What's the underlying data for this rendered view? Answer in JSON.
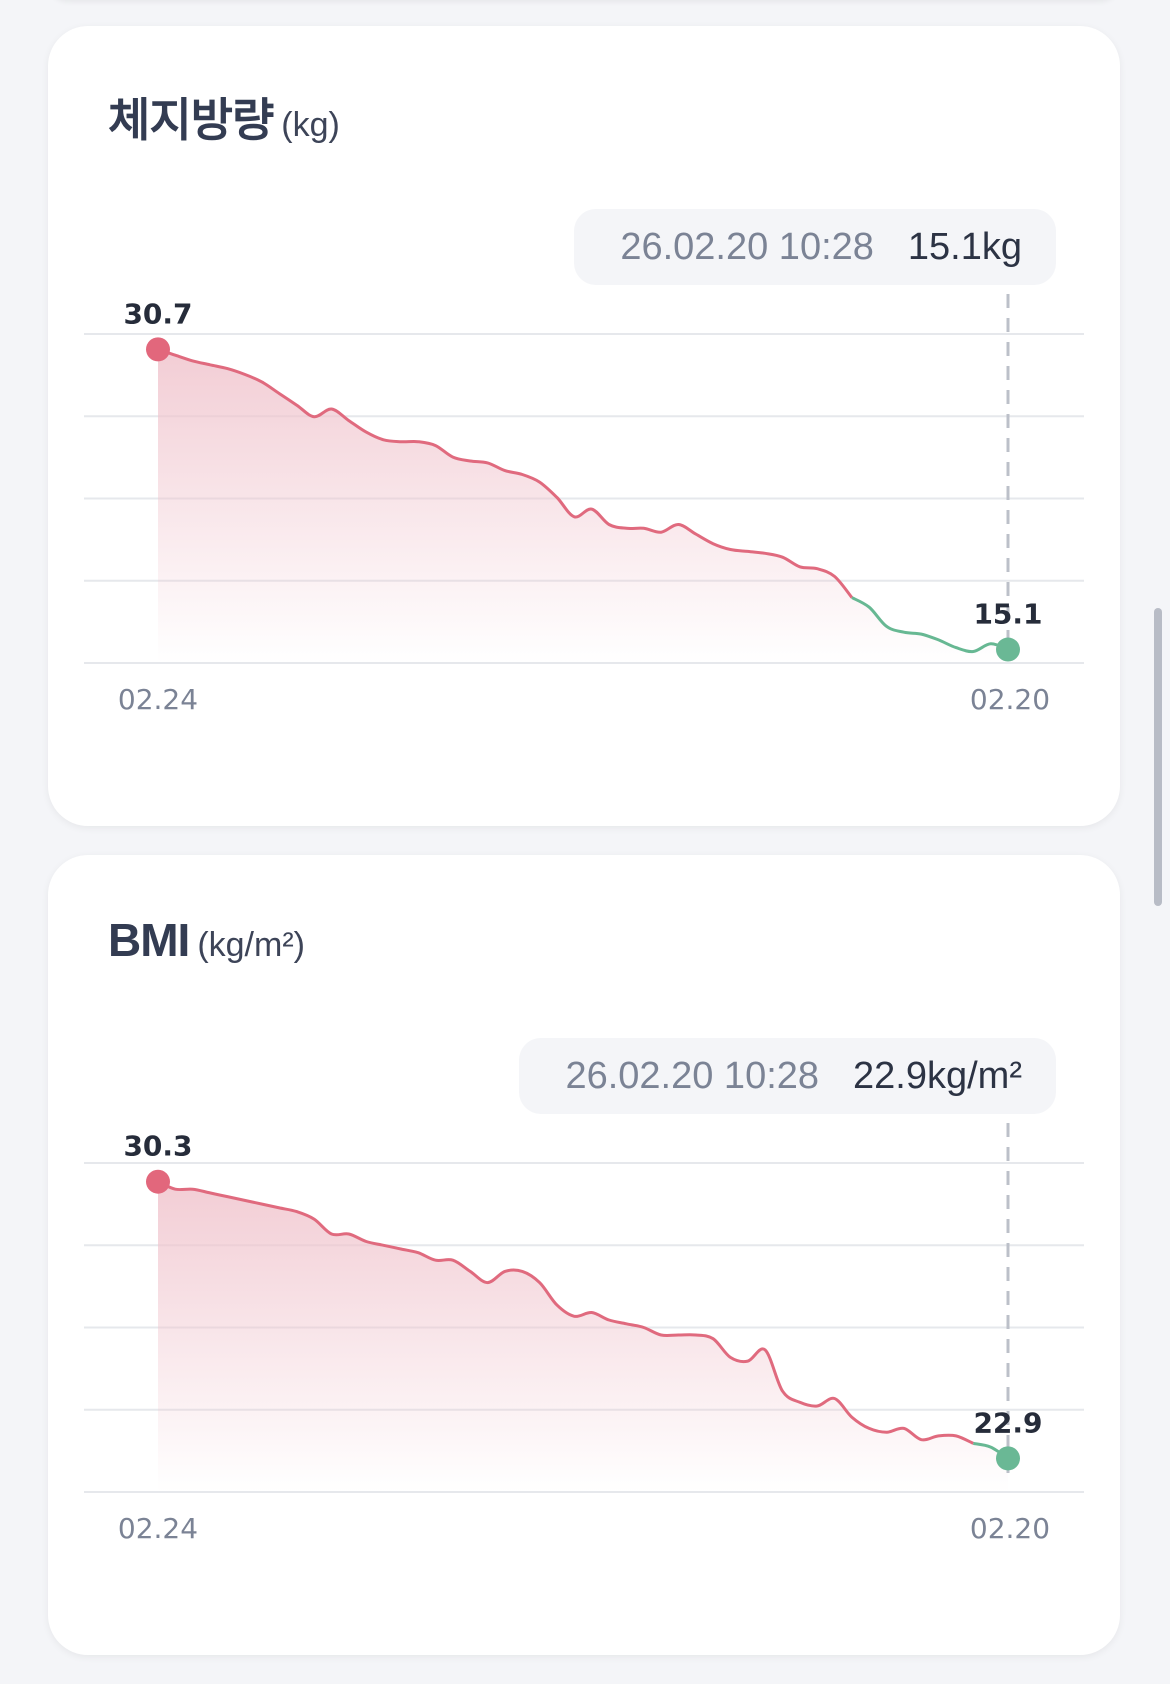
{
  "cards": [
    {
      "title": "체지방량",
      "unit": "(kg)",
      "chip": {
        "date": "26.02.20 10:28",
        "value": "15.1kg"
      },
      "colors": {
        "line": "#e06a7e",
        "fill": "#f0c4cd",
        "first_dot": "#e2677c",
        "last_dot": "#6ab895",
        "last_line": "#67b893"
      },
      "chart_data": {
        "type": "area",
        "x_tick_labels": [
          "02.24",
          "02.20"
        ],
        "first_label": "30.7",
        "last_label": "15.1",
        "values": [
          30.7,
          30.4,
          30.1,
          29.9,
          29.7,
          29.4,
          29.0,
          28.4,
          27.8,
          27.2,
          27.6,
          27.0,
          26.4,
          26.0,
          25.9,
          25.9,
          25.7,
          25.1,
          24.9,
          24.8,
          24.4,
          24.2,
          23.8,
          23.0,
          22.0,
          22.4,
          21.6,
          21.4,
          21.4,
          21.2,
          21.6,
          21.1,
          20.6,
          20.3,
          20.2,
          20.1,
          19.9,
          19.4,
          19.3,
          18.9,
          17.8,
          17.3,
          16.3,
          16.0,
          15.9,
          15.6,
          15.2,
          15.0,
          15.4,
          15.1
        ],
        "green_from_index": 40,
        "ylim": [
          14.4,
          31.5
        ],
        "gridlines": 5,
        "grid": true
      }
    },
    {
      "title": "BMI",
      "unit": "(kg/m²)",
      "chip": {
        "date": "26.02.20 10:28",
        "value": "22.9kg/m²"
      },
      "colors": {
        "line": "#e06a7e",
        "fill": "#f0c4cd",
        "first_dot": "#e2677c",
        "last_dot": "#6ab895",
        "last_line": "#67b893"
      },
      "chart_data": {
        "type": "area",
        "x_tick_labels": [
          "02.24",
          "02.20"
        ],
        "first_label": "30.3",
        "last_label": "22.9",
        "values": [
          30.3,
          30.1,
          30.1,
          30.0,
          29.9,
          29.8,
          29.7,
          29.6,
          29.5,
          29.3,
          28.9,
          28.9,
          28.7,
          28.6,
          28.5,
          28.4,
          28.2,
          28.2,
          27.9,
          27.6,
          27.9,
          27.9,
          27.6,
          27.0,
          26.7,
          26.8,
          26.6,
          26.5,
          26.4,
          26.2,
          26.2,
          26.2,
          26.1,
          25.6,
          25.5,
          25.8,
          24.7,
          24.4,
          24.3,
          24.5,
          24.0,
          23.7,
          23.6,
          23.7,
          23.4,
          23.5,
          23.5,
          23.3,
          23.2,
          22.9
        ],
        "green_from_index": 47,
        "ylim": [
          22.0,
          30.8
        ],
        "gridlines": 5,
        "grid": true
      }
    }
  ]
}
